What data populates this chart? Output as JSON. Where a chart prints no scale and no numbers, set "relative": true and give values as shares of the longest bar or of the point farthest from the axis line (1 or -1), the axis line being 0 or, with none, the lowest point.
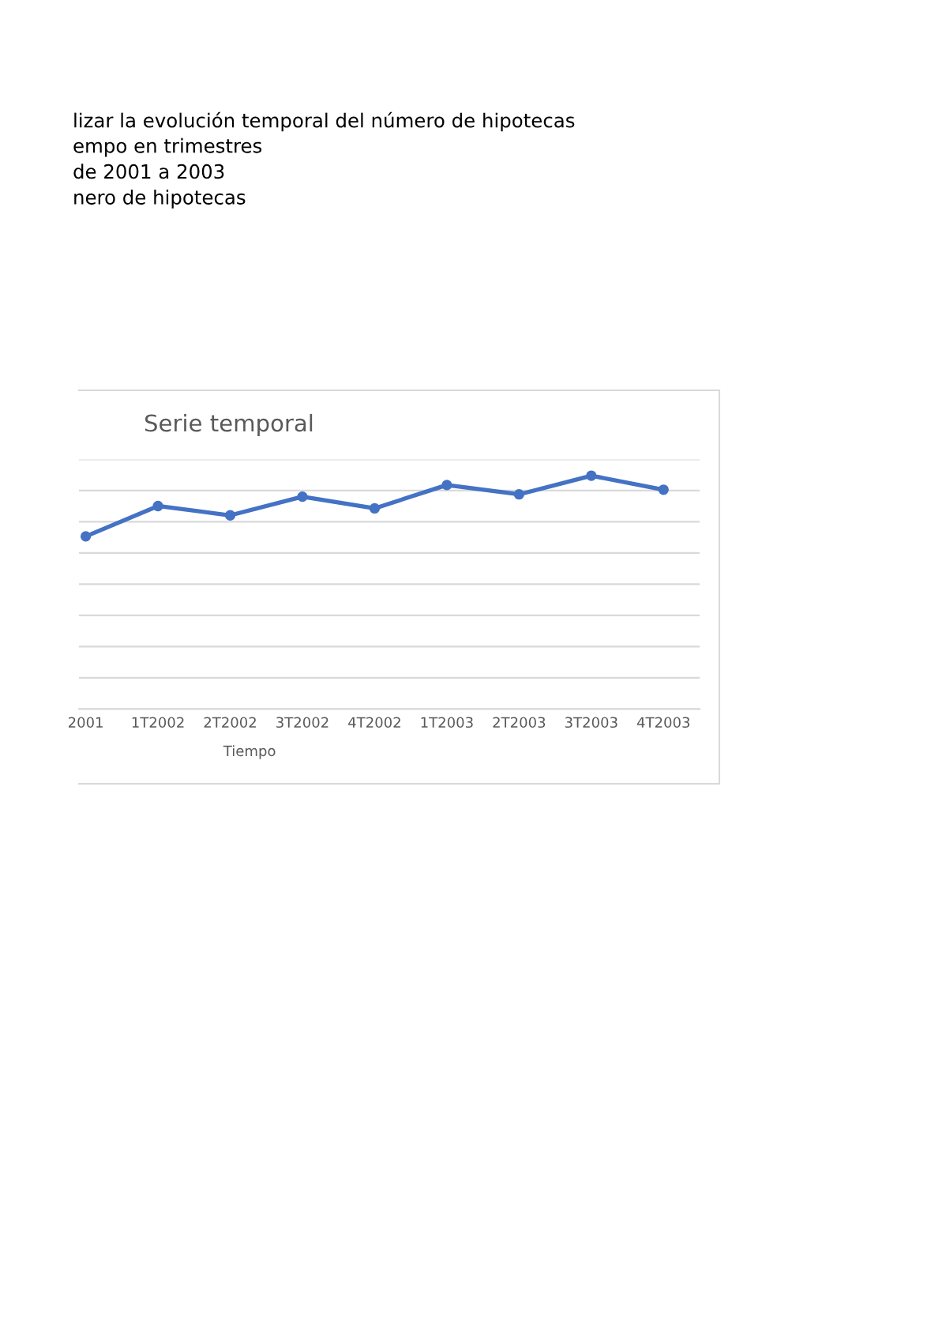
{
  "chart_data": {
    "type": "line",
    "title": "Serie temporal",
    "xlabel": "Tiempo",
    "annotations": [
      "lizar la evolución temporal del número de hipotecas",
      "empo en trimestres",
      "de 2001 a 2003",
      "nero de hipotecas"
    ],
    "categories": [
      "2001",
      "1T2002",
      "2T2002",
      "3T2002",
      "4T2002",
      "1T2003",
      "2T2003",
      "3T2003",
      "4T2003"
    ],
    "series": [
      {
        "color": "#4472c4",
        "values": [
          0.74,
          0.87,
          0.83,
          0.91,
          0.86,
          0.96,
          0.92,
          1,
          0.94
        ]
      }
    ],
    "relative": true,
    "tick_labels": "x",
    "grid": "y",
    "marker": "circle",
    "line_style": "solid"
  }
}
